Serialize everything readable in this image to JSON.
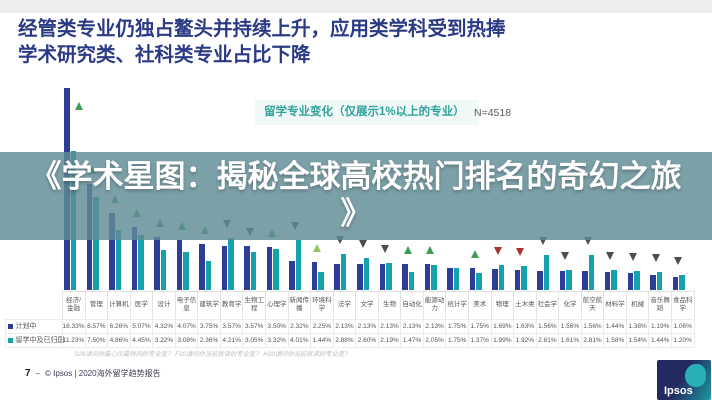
{
  "slide": {
    "title_line1": "经管类专业仍独占鳌头并持续上升，应用类学科受到热捧",
    "title_line2": "学术研究类、社科类专业占比下降",
    "banner_line1": "《学术星图：揭秘全球高校热门排名的奇幻之旅",
    "banner_line2": "》",
    "footnote": "S29请问你最心仪最倾向的专业是？ F20请问你当前就读的专业是？ H20请问你当前就读的专业是？",
    "footer": {
      "page_number": "7",
      "separator": "–",
      "copyright": "© Ipsos | 2020海外留学趋势报告",
      "logo_text": "Ipsos"
    }
  },
  "chart_data": {
    "type": "bar",
    "title": "留学专业变化（仅展示1%以上的专业）",
    "sample_label": "N=4518",
    "legend_position": "bottom-left",
    "grid": false,
    "ylim": [
      0,
      17
    ],
    "unit": "%",
    "categories": [
      "经济/金融",
      "管理",
      "计算机",
      "医学",
      "设计",
      "电子信息",
      "建筑学",
      "教育学",
      "生物工程",
      "心理学",
      "新闻传播",
      "环境科学",
      "法学",
      "文学",
      "生物",
      "自动化",
      "能源动力",
      "统计学",
      "美术",
      "物理",
      "土木类",
      "社会学",
      "化学",
      "航空航天",
      "材料学",
      "机械",
      "音乐舞蹈",
      "食品科学"
    ],
    "series": [
      {
        "name": "计划中",
        "values": [
          "16.33%",
          "8.57%",
          "6.26%",
          "5.07%",
          "4.32%",
          "4.07%",
          "3.75%",
          "3.57%",
          "3.57%",
          "3.50%",
          "2.32%",
          "2.25%",
          "2.13%",
          "2.13%",
          "2.13%",
          "2.13%",
          "2.13%",
          "1.75%",
          "1.75%",
          "1.69%",
          "1.63%",
          "1.56%",
          "1.56%",
          "1.56%",
          "1.44%",
          "1.38%",
          "1.19%",
          "1.06%"
        ]
      },
      {
        "name": "留学中及已归国",
        "values": [
          "11.23%",
          "7.50%",
          "4.86%",
          "4.45%",
          "3.22%",
          "3.08%",
          "2.36%",
          "4.21%",
          "3.05%",
          "3.32%",
          "4.01%",
          "1.44%",
          "2.88%",
          "2.60%",
          "2.19%",
          "1.47%",
          "2.05%",
          "1.75%",
          "1.37%",
          "1.99%",
          "1.92%",
          "2.81%",
          "1.61%",
          "2.81%",
          "1.58%",
          "1.54%",
          "1.44%",
          "1.20%"
        ]
      }
    ],
    "trend_arrows": [
      "up",
      "up",
      "up",
      "up",
      "up",
      "up",
      "up",
      "down",
      "down",
      "up",
      "down",
      "up-light",
      "down",
      "down",
      "down",
      "up",
      "up",
      "none",
      "up",
      "down-red",
      "down-red",
      "down",
      "down",
      "down",
      "down",
      "down",
      "down",
      "down"
    ],
    "colors": {
      "planned_bar": "#2e3d98",
      "current_bar": "#16a2ac",
      "arrow_up": "#3f9d54",
      "arrow_up_light": "#92c462",
      "arrow_down": "#474f54",
      "arrow_down_red": "#a8322e",
      "title_text": "#2b3a85",
      "chart_header_text": "#2fa39c",
      "banner_bg": "#5f8b95"
    }
  }
}
